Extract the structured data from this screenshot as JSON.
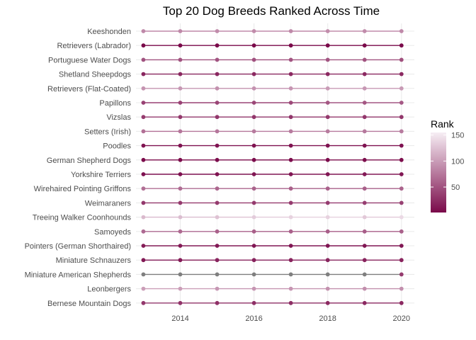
{
  "chart_data": {
    "type": "scatter",
    "title": "Top 20 Dog Breeds Ranked Across Time",
    "xlabel": "",
    "ylabel": "",
    "x": [
      2013,
      2014,
      2015,
      2016,
      2017,
      2018,
      2019,
      2020
    ],
    "xlim": [
      2012.8,
      2020.35
    ],
    "xticks": [
      2014,
      2016,
      2018,
      2020
    ],
    "grid": true,
    "legend": {
      "title": "Rank",
      "position": "right",
      "ticks": [
        50,
        100,
        150
      ],
      "range": [
        1,
        155
      ]
    },
    "colors": {
      "low": "#7a0a4a",
      "high": "#f6eef4",
      "missing": "#7f7f7f"
    },
    "series": [
      {
        "name": "Keeshonden",
        "values": [
          87,
          87,
          89,
          89,
          87,
          90,
          89,
          87
        ]
      },
      {
        "name": "Retrievers (Labrador)",
        "values": [
          1,
          1,
          1,
          1,
          1,
          1,
          1,
          1
        ]
      },
      {
        "name": "Portuguese Water Dogs",
        "values": [
          50,
          50,
          51,
          49,
          51,
          51,
          50,
          48
        ]
      },
      {
        "name": "Shetland Sheepdogs",
        "values": [
          20,
          21,
          21,
          22,
          22,
          22,
          22,
          22
        ]
      },
      {
        "name": "Retrievers (Flat-Coated)",
        "values": [
          94,
          96,
          92,
          93,
          95,
          99,
          97,
          98
        ]
      },
      {
        "name": "Papillons",
        "values": [
          38,
          39,
          41,
          42,
          43,
          53,
          53,
          54
        ]
      },
      {
        "name": "Vizslas",
        "values": [
          34,
          32,
          31,
          31,
          30,
          33,
          31,
          31
        ]
      },
      {
        "name": "Setters (Irish)",
        "values": [
          70,
          74,
          74,
          77,
          77,
          77,
          76,
          77
        ]
      },
      {
        "name": "Poodles",
        "values": [
          8,
          7,
          8,
          7,
          7,
          7,
          7,
          6
        ]
      },
      {
        "name": "German Shepherd Dogs",
        "values": [
          2,
          2,
          2,
          2,
          2,
          2,
          3,
          3
        ]
      },
      {
        "name": "Yorkshire Terriers",
        "values": [
          6,
          6,
          7,
          9,
          9,
          10,
          12,
          10
        ]
      },
      {
        "name": "Wirehaired Pointing Griffons",
        "values": [
          69,
          67,
          63,
          61,
          59,
          60,
          59,
          61
        ]
      },
      {
        "name": "Weimaraners",
        "values": [
          32,
          34,
          34,
          34,
          34,
          35,
          36,
          38
        ]
      },
      {
        "name": "Treeing Walker Coonhounds",
        "values": [
          120,
          122,
          125,
          132,
          136,
          136,
          130,
          141
        ]
      },
      {
        "name": "Samoyeds",
        "values": [
          66,
          65,
          60,
          59,
          59,
          58,
          58,
          59
        ]
      },
      {
        "name": "Pointers (German Shorthaired)",
        "values": [
          13,
          12,
          11,
          9,
          9,
          9,
          9,
          9
        ]
      },
      {
        "name": "Miniature Schnauzers",
        "values": [
          11,
          12,
          18,
          17,
          17,
          19,
          18,
          18
        ]
      },
      {
        "name": "Miniature American Shepherds",
        "values": [
          null,
          null,
          null,
          null,
          null,
          null,
          null,
          34
        ]
      },
      {
        "name": "Leonbergers",
        "values": [
          101,
          101,
          96,
          95,
          95,
          92,
          91,
          91
        ]
      },
      {
        "name": "Bernese Mountain Dogs",
        "values": [
          32,
          29,
          27,
          26,
          25,
          22,
          22,
          22
        ]
      }
    ]
  }
}
